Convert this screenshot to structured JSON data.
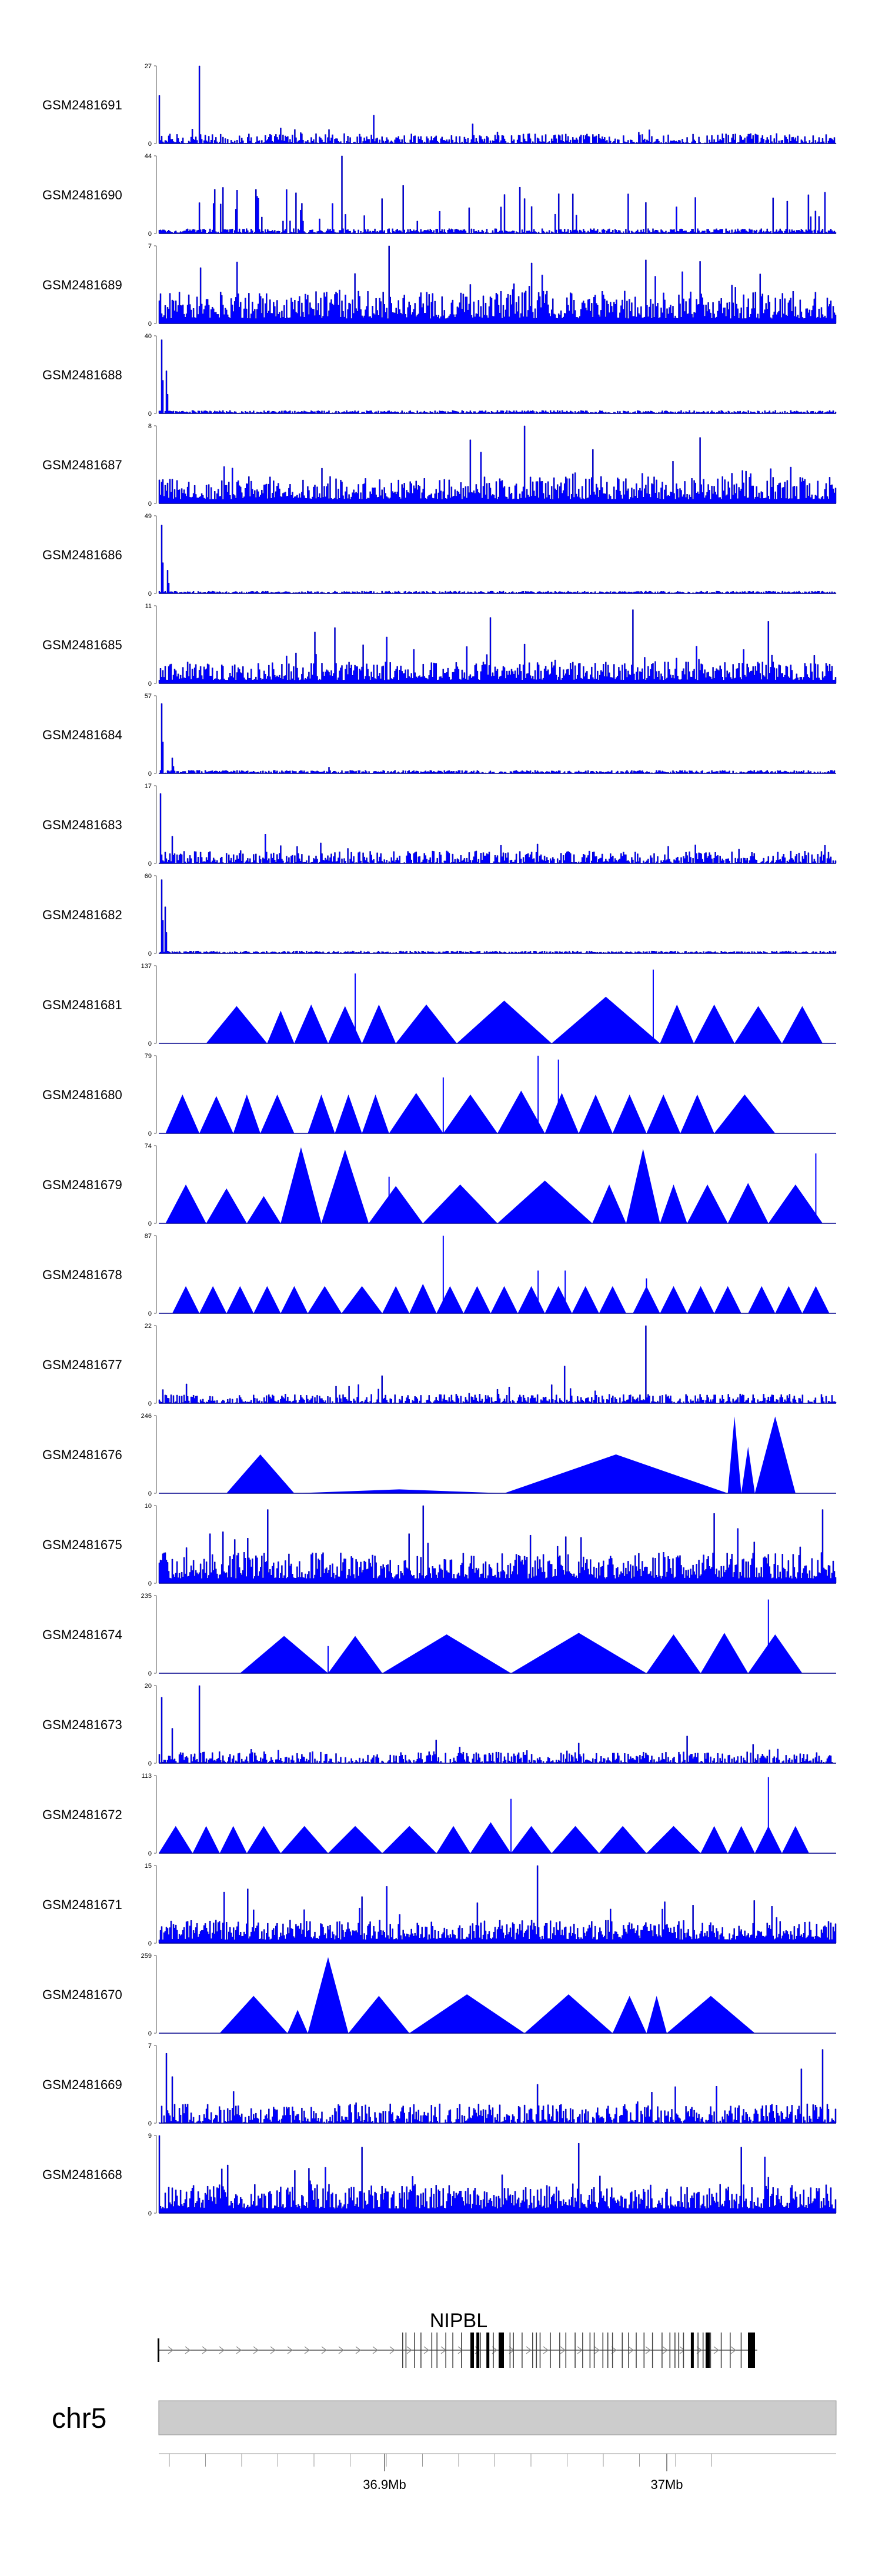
{
  "chart_data": {
    "type": "area",
    "chromosome": "chr5",
    "axis": {
      "tick_labels": [
        {
          "label": "36.9Mb",
          "position_mb": 36.9
        },
        {
          "label": "37Mb",
          "position_mb": 37.0
        }
      ],
      "xlim_mb": [
        36.82,
        37.06
      ]
    },
    "gene": {
      "name": "NIPBL",
      "strand": "+",
      "start_mb": 36.876,
      "end_mb": 37.065
    },
    "tracks": [
      {
        "name": "GSM2481691",
        "ymax": 27,
        "ymin": 0,
        "pattern": "noise",
        "noise": 0.13,
        "peaks": [
          [
            0.0,
            0.62
          ],
          [
            0.06,
            1.0
          ],
          [
            0.2,
            0.18
          ],
          [
            0.5,
            0.15
          ]
        ]
      },
      {
        "name": "GSM2481690",
        "ymax": 44,
        "ymin": 0,
        "pattern": "spiky",
        "noise": 0.18,
        "peaks": [
          [
            0.09,
            0.38
          ],
          [
            0.27,
            1.0
          ],
          [
            0.36,
            0.62
          ],
          [
            0.54,
            0.45
          ],
          [
            0.72,
            0.4
          ],
          [
            0.96,
            0.5
          ]
        ]
      },
      {
        "name": "GSM2481689",
        "ymax": 7,
        "ymin": 0,
        "pattern": "dense",
        "noise": 0.42,
        "peaks": [
          [
            0.34,
            1.0
          ],
          [
            0.55,
            0.78
          ],
          [
            0.8,
            0.8
          ]
        ]
      },
      {
        "name": "GSM2481688",
        "ymax": 40,
        "ymin": 0,
        "pattern": "spike-start",
        "noise": 0.04,
        "peaks": [
          [
            0.003,
            0.95
          ],
          [
            0.01,
            0.55
          ]
        ]
      },
      {
        "name": "GSM2481687",
        "ymax": 8,
        "ymin": 0,
        "pattern": "dense",
        "noise": 0.35,
        "peaks": [
          [
            0.54,
            1.0
          ],
          [
            0.46,
            0.82
          ],
          [
            0.8,
            0.85
          ]
        ]
      },
      {
        "name": "GSM2481686",
        "ymax": 49,
        "ymin": 0,
        "pattern": "spike-start",
        "noise": 0.03,
        "peaks": [
          [
            0.003,
            0.88
          ],
          [
            0.012,
            0.3
          ]
        ]
      },
      {
        "name": "GSM2481685",
        "ymax": 11,
        "ymin": 0,
        "pattern": "dense",
        "noise": 0.28,
        "peaks": [
          [
            0.26,
            0.72
          ],
          [
            0.49,
            0.85
          ],
          [
            0.7,
            0.95
          ],
          [
            0.9,
            0.8
          ]
        ]
      },
      {
        "name": "GSM2481684",
        "ymax": 57,
        "ymin": 0,
        "pattern": "spike-start",
        "noise": 0.04,
        "peaks": [
          [
            0.003,
            0.9
          ],
          [
            0.02,
            0.2
          ],
          [
            0.25,
            0.08
          ]
        ]
      },
      {
        "name": "GSM2481683",
        "ymax": 17,
        "ymin": 0,
        "pattern": "noise",
        "noise": 0.16,
        "peaks": [
          [
            0.002,
            0.9
          ],
          [
            0.02,
            0.35
          ],
          [
            0.56,
            0.25
          ]
        ]
      },
      {
        "name": "GSM2481682",
        "ymax": 60,
        "ymin": 0,
        "pattern": "spike-start",
        "noise": 0.03,
        "peaks": [
          [
            0.003,
            0.95
          ],
          [
            0.008,
            0.6
          ]
        ]
      },
      {
        "name": "GSM2481681",
        "ymax": 137,
        "ymin": 0,
        "pattern": "triangles",
        "triangles": [
          [
            0.07,
            0.16,
            0.48
          ],
          [
            0.16,
            0.2,
            0.42
          ],
          [
            0.2,
            0.25,
            0.5
          ],
          [
            0.25,
            0.3,
            0.48
          ],
          [
            0.3,
            0.35,
            0.5
          ],
          [
            0.35,
            0.44,
            0.5
          ],
          [
            0.44,
            0.58,
            0.55
          ],
          [
            0.58,
            0.74,
            0.6
          ],
          [
            0.74,
            0.79,
            0.5
          ],
          [
            0.79,
            0.85,
            0.5
          ],
          [
            0.85,
            0.92,
            0.48
          ],
          [
            0.92,
            0.98,
            0.48
          ]
        ],
        "peaks": [
          [
            0.29,
            0.9
          ],
          [
            0.73,
            0.95
          ]
        ]
      },
      {
        "name": "GSM2481680",
        "ymax": 79,
        "ymin": 0,
        "pattern": "triangles",
        "triangles": [
          [
            0.01,
            0.06,
            0.5
          ],
          [
            0.06,
            0.11,
            0.48
          ],
          [
            0.11,
            0.15,
            0.5
          ],
          [
            0.15,
            0.2,
            0.5
          ],
          [
            0.22,
            0.26,
            0.5
          ],
          [
            0.26,
            0.3,
            0.5
          ],
          [
            0.3,
            0.34,
            0.5
          ],
          [
            0.34,
            0.42,
            0.52
          ],
          [
            0.42,
            0.5,
            0.5
          ],
          [
            0.5,
            0.57,
            0.55
          ],
          [
            0.57,
            0.62,
            0.52
          ],
          [
            0.62,
            0.67,
            0.5
          ],
          [
            0.67,
            0.72,
            0.5
          ],
          [
            0.72,
            0.77,
            0.5
          ],
          [
            0.77,
            0.82,
            0.5
          ],
          [
            0.82,
            0.91,
            0.5
          ]
        ],
        "peaks": [
          [
            0.56,
            1.0
          ],
          [
            0.59,
            0.95
          ],
          [
            0.42,
            0.72
          ]
        ]
      },
      {
        "name": "GSM2481679",
        "ymax": 74,
        "ymin": 0,
        "pattern": "triangles",
        "triangles": [
          [
            0.01,
            0.07,
            0.5
          ],
          [
            0.07,
            0.13,
            0.45
          ],
          [
            0.13,
            0.18,
            0.35
          ],
          [
            0.18,
            0.24,
            0.98
          ],
          [
            0.24,
            0.31,
            0.95
          ],
          [
            0.31,
            0.39,
            0.48
          ],
          [
            0.39,
            0.5,
            0.5
          ],
          [
            0.5,
            0.64,
            0.55
          ],
          [
            0.64,
            0.69,
            0.5
          ],
          [
            0.69,
            0.74,
            0.96
          ],
          [
            0.74,
            0.78,
            0.5
          ],
          [
            0.78,
            0.84,
            0.5
          ],
          [
            0.84,
            0.9,
            0.52
          ],
          [
            0.9,
            0.98,
            0.5
          ]
        ],
        "peaks": [
          [
            0.97,
            0.9
          ],
          [
            0.34,
            0.6
          ]
        ]
      },
      {
        "name": "GSM2481678",
        "ymax": 87,
        "ymin": 0,
        "pattern": "triangles",
        "triangles": [
          [
            0.02,
            0.06,
            0.35
          ],
          [
            0.06,
            0.1,
            0.35
          ],
          [
            0.1,
            0.14,
            0.35
          ],
          [
            0.14,
            0.18,
            0.35
          ],
          [
            0.18,
            0.22,
            0.35
          ],
          [
            0.22,
            0.27,
            0.35
          ],
          [
            0.27,
            0.33,
            0.35
          ],
          [
            0.33,
            0.37,
            0.35
          ],
          [
            0.37,
            0.41,
            0.38
          ],
          [
            0.41,
            0.45,
            0.35
          ],
          [
            0.45,
            0.49,
            0.35
          ],
          [
            0.49,
            0.53,
            0.35
          ],
          [
            0.53,
            0.57,
            0.35
          ],
          [
            0.57,
            0.61,
            0.35
          ],
          [
            0.61,
            0.65,
            0.35
          ],
          [
            0.65,
            0.69,
            0.35
          ],
          [
            0.7,
            0.74,
            0.35
          ],
          [
            0.74,
            0.78,
            0.35
          ],
          [
            0.78,
            0.82,
            0.35
          ],
          [
            0.82,
            0.86,
            0.35
          ],
          [
            0.87,
            0.91,
            0.35
          ],
          [
            0.91,
            0.95,
            0.35
          ],
          [
            0.95,
            0.99,
            0.35
          ]
        ],
        "peaks": [
          [
            0.42,
            1.0
          ],
          [
            0.56,
            0.55
          ],
          [
            0.6,
            0.55
          ],
          [
            0.72,
            0.45
          ]
        ]
      },
      {
        "name": "GSM2481677",
        "ymax": 22,
        "ymin": 0,
        "pattern": "noise",
        "noise": 0.12,
        "peaks": [
          [
            0.6,
            0.48
          ],
          [
            0.72,
            1.0
          ],
          [
            0.04,
            0.25
          ],
          [
            0.28,
            0.22
          ],
          [
            0.5,
            0.18
          ]
        ]
      },
      {
        "name": "GSM2481676",
        "ymax": 246,
        "ymin": 0,
        "pattern": "triangles",
        "triangles": [
          [
            0.1,
            0.2,
            0.5
          ],
          [
            0.2,
            0.51,
            0.05
          ],
          [
            0.51,
            0.84,
            0.5
          ],
          [
            0.84,
            0.86,
            0.99
          ],
          [
            0.86,
            0.88,
            0.6
          ],
          [
            0.88,
            0.94,
            0.99
          ]
        ],
        "peaks": []
      },
      {
        "name": "GSM2481675",
        "ymax": 10,
        "ymin": 0,
        "pattern": "dense",
        "noise": 0.4,
        "peaks": [
          [
            0.16,
            0.95
          ],
          [
            0.39,
            1.0
          ],
          [
            0.82,
            0.9
          ],
          [
            0.98,
            0.95
          ]
        ]
      },
      {
        "name": "GSM2481674",
        "ymax": 235,
        "ymin": 0,
        "pattern": "triangles",
        "triangles": [
          [
            0.12,
            0.25,
            0.48
          ],
          [
            0.25,
            0.33,
            0.48
          ],
          [
            0.33,
            0.52,
            0.5
          ],
          [
            0.52,
            0.72,
            0.52
          ],
          [
            0.72,
            0.8,
            0.5
          ],
          [
            0.8,
            0.87,
            0.52
          ],
          [
            0.87,
            0.95,
            0.5
          ]
        ],
        "peaks": [
          [
            0.25,
            0.35
          ],
          [
            0.9,
            0.95
          ]
        ]
      },
      {
        "name": "GSM2481673",
        "ymax": 20,
        "ymin": 0,
        "pattern": "noise",
        "noise": 0.15,
        "peaks": [
          [
            0.003,
            0.85
          ],
          [
            0.02,
            0.45
          ],
          [
            0.06,
            1.0
          ],
          [
            0.41,
            0.3
          ],
          [
            0.78,
            0.35
          ]
        ]
      },
      {
        "name": "GSM2481672",
        "ymax": 113,
        "ymin": 0,
        "pattern": "triangles",
        "triangles": [
          [
            0.0,
            0.05,
            0.35
          ],
          [
            0.05,
            0.09,
            0.35
          ],
          [
            0.09,
            0.13,
            0.35
          ],
          [
            0.13,
            0.18,
            0.35
          ],
          [
            0.18,
            0.25,
            0.35
          ],
          [
            0.25,
            0.33,
            0.35
          ],
          [
            0.33,
            0.41,
            0.35
          ],
          [
            0.41,
            0.46,
            0.35
          ],
          [
            0.46,
            0.52,
            0.4
          ],
          [
            0.52,
            0.58,
            0.35
          ],
          [
            0.58,
            0.65,
            0.35
          ],
          [
            0.65,
            0.72,
            0.35
          ],
          [
            0.72,
            0.8,
            0.35
          ],
          [
            0.8,
            0.84,
            0.35
          ],
          [
            0.84,
            0.88,
            0.35
          ],
          [
            0.88,
            0.92,
            0.35
          ],
          [
            0.92,
            0.96,
            0.35
          ]
        ],
        "peaks": [
          [
            0.52,
            0.7
          ],
          [
            0.9,
            0.98
          ]
        ]
      },
      {
        "name": "GSM2481671",
        "ymax": 15,
        "ymin": 0,
        "pattern": "dense",
        "noise": 0.3,
        "peaks": [
          [
            0.56,
            1.0
          ],
          [
            0.13,
            0.7
          ],
          [
            0.3,
            0.6
          ],
          [
            0.88,
            0.55
          ]
        ]
      },
      {
        "name": "GSM2481670",
        "ymax": 259,
        "ymin": 0,
        "pattern": "triangles",
        "triangles": [
          [
            0.09,
            0.19,
            0.48
          ],
          [
            0.19,
            0.22,
            0.3
          ],
          [
            0.22,
            0.28,
            0.98
          ],
          [
            0.28,
            0.37,
            0.48
          ],
          [
            0.37,
            0.54,
            0.5
          ],
          [
            0.54,
            0.67,
            0.5
          ],
          [
            0.67,
            0.72,
            0.48
          ],
          [
            0.72,
            0.75,
            0.48
          ],
          [
            0.75,
            0.88,
            0.48
          ]
        ],
        "peaks": []
      },
      {
        "name": "GSM2481669",
        "ymax": 7,
        "ymin": 0,
        "pattern": "noise",
        "noise": 0.25,
        "peaks": [
          [
            0.01,
            0.9
          ],
          [
            0.02,
            0.6
          ],
          [
            0.98,
            0.95
          ],
          [
            0.95,
            0.7
          ],
          [
            0.56,
            0.5
          ]
        ]
      },
      {
        "name": "GSM2481668",
        "ymax": 9,
        "ymin": 0,
        "pattern": "dense",
        "noise": 0.38,
        "peaks": [
          [
            0.0,
            1.0
          ],
          [
            0.3,
            0.85
          ],
          [
            0.62,
            0.9
          ],
          [
            0.86,
            0.85
          ]
        ]
      }
    ]
  }
}
